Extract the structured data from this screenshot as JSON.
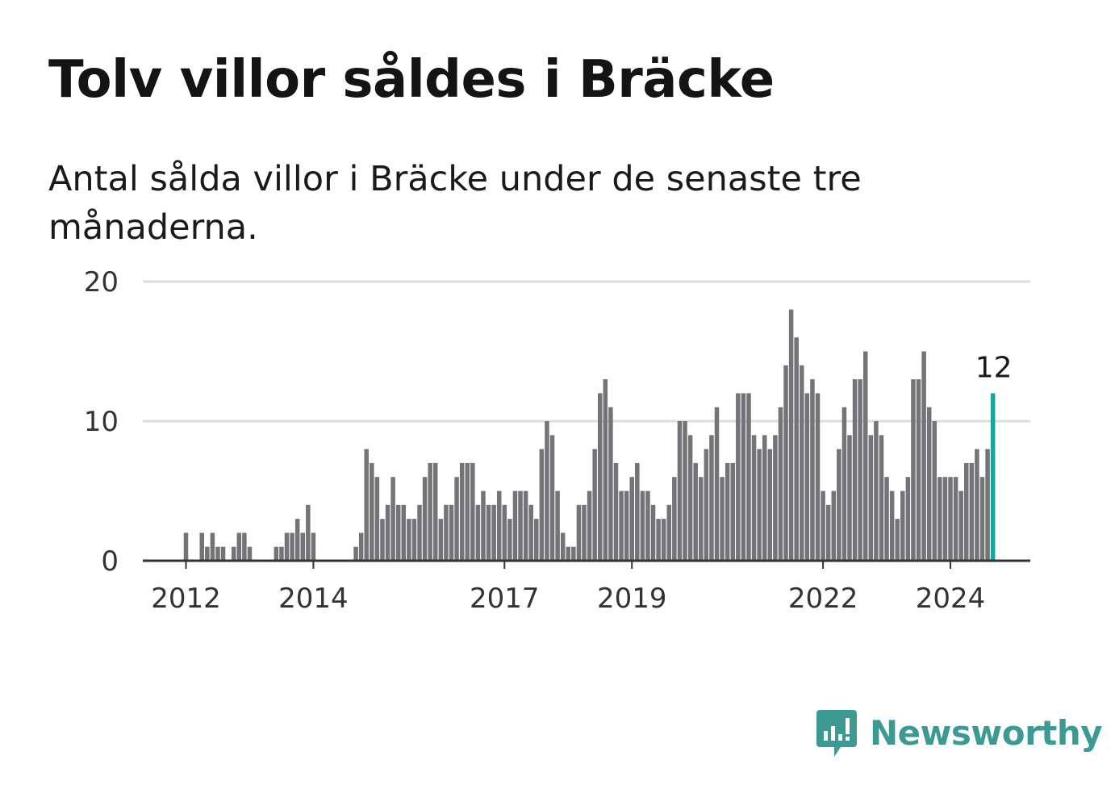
{
  "title": "Tolv villor såldes i Bräcke",
  "subtitle": "Antal sålda villor i Bräcke under de senaste tre månaderna.",
  "brand": {
    "name": "Newsworthy",
    "color": "#3d9a93",
    "icon": "newsworthy-logo-icon"
  },
  "colors": {
    "bar": "#747378",
    "highlight": "#1aa59a",
    "grid": "#dddddd",
    "axis": "#333333"
  },
  "chart_data": {
    "type": "bar",
    "xlabel": "",
    "ylabel": "",
    "ylim": [
      0,
      20
    ],
    "yticks": [
      0,
      10,
      20
    ],
    "xticks": [
      2012,
      2014,
      2017,
      2019,
      2022,
      2024
    ],
    "grid": true,
    "start": "2011-05",
    "highlight_label": "12",
    "values": [
      0,
      0,
      0,
      0,
      0,
      0,
      0,
      0,
      2,
      0,
      0,
      2,
      1,
      2,
      1,
      1,
      0,
      1,
      2,
      2,
      1,
      0,
      0,
      0,
      0,
      1,
      1,
      2,
      2,
      3,
      2,
      4,
      2,
      0,
      0,
      0,
      0,
      0,
      0,
      0,
      1,
      2,
      8,
      7,
      6,
      3,
      4,
      6,
      4,
      4,
      3,
      3,
      4,
      6,
      7,
      7,
      3,
      4,
      4,
      6,
      7,
      7,
      7,
      4,
      5,
      4,
      4,
      5,
      4,
      3,
      5,
      5,
      5,
      4,
      3,
      8,
      10,
      9,
      5,
      2,
      1,
      1,
      4,
      4,
      5,
      8,
      12,
      13,
      11,
      7,
      5,
      5,
      6,
      7,
      5,
      5,
      4,
      3,
      3,
      4,
      6,
      10,
      10,
      9,
      7,
      6,
      8,
      9,
      11,
      6,
      7,
      7,
      12,
      12,
      12,
      9,
      8,
      9,
      8,
      9,
      11,
      14,
      18,
      16,
      14,
      12,
      13,
      12,
      5,
      4,
      5,
      8,
      11,
      9,
      13,
      13,
      15,
      9,
      10,
      9,
      6,
      5,
      3,
      5,
      6,
      13,
      13,
      15,
      11,
      10,
      6,
      6,
      6,
      6,
      5,
      7,
      7,
      8,
      6,
      8,
      12
    ]
  }
}
